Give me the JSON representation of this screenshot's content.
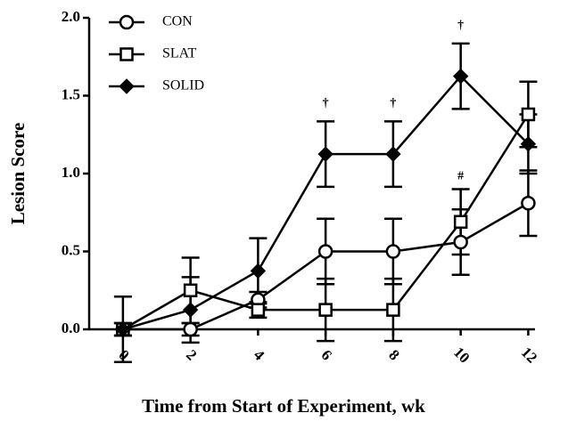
{
  "chart_data": {
    "type": "line",
    "xlabel": "Time from Start of Experiment, wk",
    "ylabel": "Lesion Score",
    "x": [
      0,
      2,
      4,
      6,
      8,
      10,
      12
    ],
    "series": [
      {
        "name": "CON",
        "color": "#000000",
        "marker": "circle",
        "values": [
          0,
          0,
          0.19,
          0.5,
          0.5,
          0.56,
          0.81
        ],
        "errors": [
          0.21,
          0.04,
          0.05,
          0.21,
          0.21,
          0.21,
          0.21
        ]
      },
      {
        "name": "SLAT",
        "color": "#000000",
        "marker": "square",
        "values": [
          0,
          0.25,
          0.125,
          0.125,
          0.125,
          0.69,
          1.38
        ],
        "errors": [
          0.04,
          0.21,
          0.05,
          0.2,
          0.2,
          0.21,
          0.21
        ]
      },
      {
        "name": "SOLID",
        "color": "#000000",
        "marker": "diamond",
        "values": [
          0,
          0.125,
          0.375,
          1.125,
          1.125,
          1.625,
          1.19
        ],
        "errors": [
          0.04,
          0.21,
          0.21,
          0.21,
          0.21,
          0.21,
          0.19
        ]
      }
    ],
    "annotations": [
      {
        "text": "†",
        "x": 6,
        "y": 1.45
      },
      {
        "text": "†",
        "x": 8,
        "y": 1.45
      },
      {
        "text": "†",
        "x": 10,
        "y": 1.95
      },
      {
        "text": "#",
        "x": 10,
        "y": 0.98
      }
    ],
    "xlim": [
      -1,
      12.2
    ],
    "xticks": [
      0,
      2,
      4,
      6,
      8,
      10,
      12
    ],
    "ylim": [
      0,
      2
    ],
    "yticks": [
      {
        "value": 0,
        "label": "0.0"
      },
      {
        "value": 0.5,
        "label": "0.5"
      },
      {
        "value": 1,
        "label": "1.0"
      },
      {
        "value": 1.5,
        "label": "1.5"
      },
      {
        "value": 2,
        "label": "2.0"
      }
    ],
    "legend": "upper left"
  }
}
